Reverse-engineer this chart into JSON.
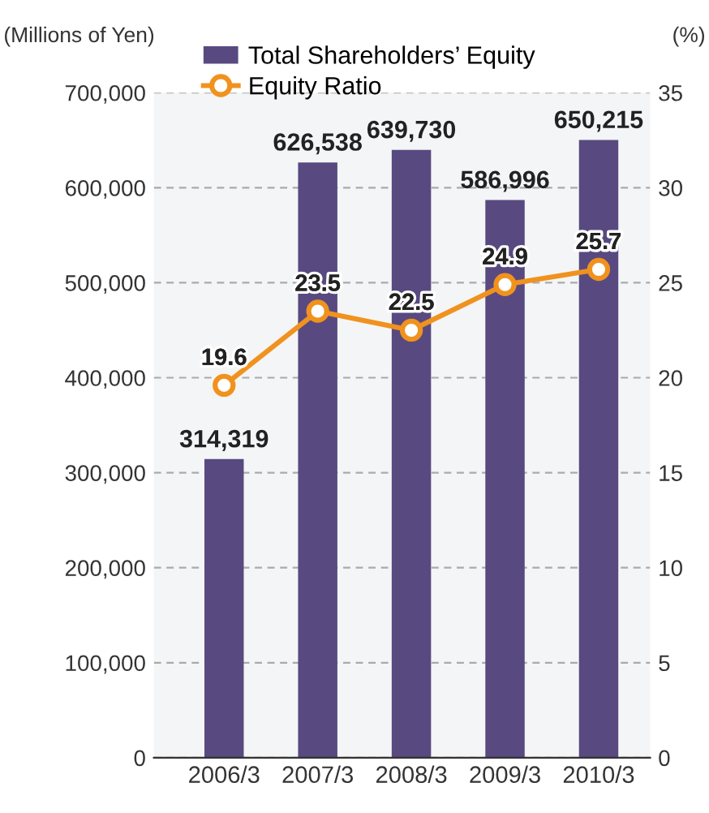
{
  "chart_data": {
    "type": "bar",
    "ylabel": "(Millions of Yen)",
    "y2label": "(%)",
    "categories": [
      "2006/3",
      "2007/3",
      "2008/3",
      "2009/3",
      "2010/3"
    ],
    "series": [
      {
        "name": "Total Shareholders’ Equity",
        "color": "#584a80",
        "values": [
          314319,
          626538,
          639730,
          586996,
          650215
        ],
        "value_labels": [
          "314,319",
          "626,538",
          "639,730",
          "586,996",
          "650,215"
        ]
      },
      {
        "name": "Equity Ratio",
        "type": "line",
        "axis": "y2",
        "color": "#f0921e",
        "marker": "circle",
        "values": [
          19.6,
          23.5,
          22.5,
          24.9,
          25.7
        ],
        "value_labels": [
          "19.6",
          "23.5",
          "22.5",
          "24.9",
          "25.7"
        ]
      }
    ],
    "ylim": [
      0,
      700000
    ],
    "yticks": [
      {
        "value": 0,
        "label": "0"
      },
      {
        "value": 100000,
        "label": "100,000"
      },
      {
        "value": 200000,
        "label": "200,000"
      },
      {
        "value": 300000,
        "label": "300,000"
      },
      {
        "value": 400000,
        "label": "400,000"
      },
      {
        "value": 500000,
        "label": "500,000"
      },
      {
        "value": 600000,
        "label": "600,000"
      },
      {
        "value": 700000,
        "label": "700,000"
      }
    ],
    "y2lim": [
      0,
      35
    ],
    "y2ticks": [
      0,
      5,
      10,
      15,
      20,
      25,
      30,
      35
    ],
    "grid": "y",
    "legend": "top left"
  }
}
